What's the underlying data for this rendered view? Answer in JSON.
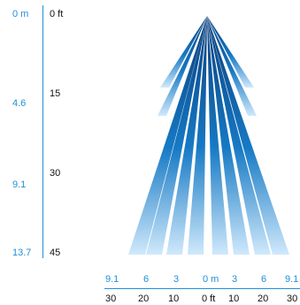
{
  "vertical_axis": {
    "meters": [
      "0 m",
      "4.6",
      "9.1",
      "13.7"
    ],
    "feet": [
      "0 ft",
      "15",
      "30",
      "45"
    ]
  },
  "horizontal_axis": {
    "meters": [
      "9.1",
      "6",
      "3",
      "0 m",
      "3",
      "6",
      "9.1"
    ],
    "feet": [
      "30",
      "20",
      "10",
      "0 ft",
      "10",
      "20",
      "30"
    ]
  },
  "colors": {
    "axis": "#1f8fd6",
    "beam_dark": "#0a3f7c",
    "beam_mid": "#1679c4",
    "beam_light": "#cfe9fb"
  }
}
